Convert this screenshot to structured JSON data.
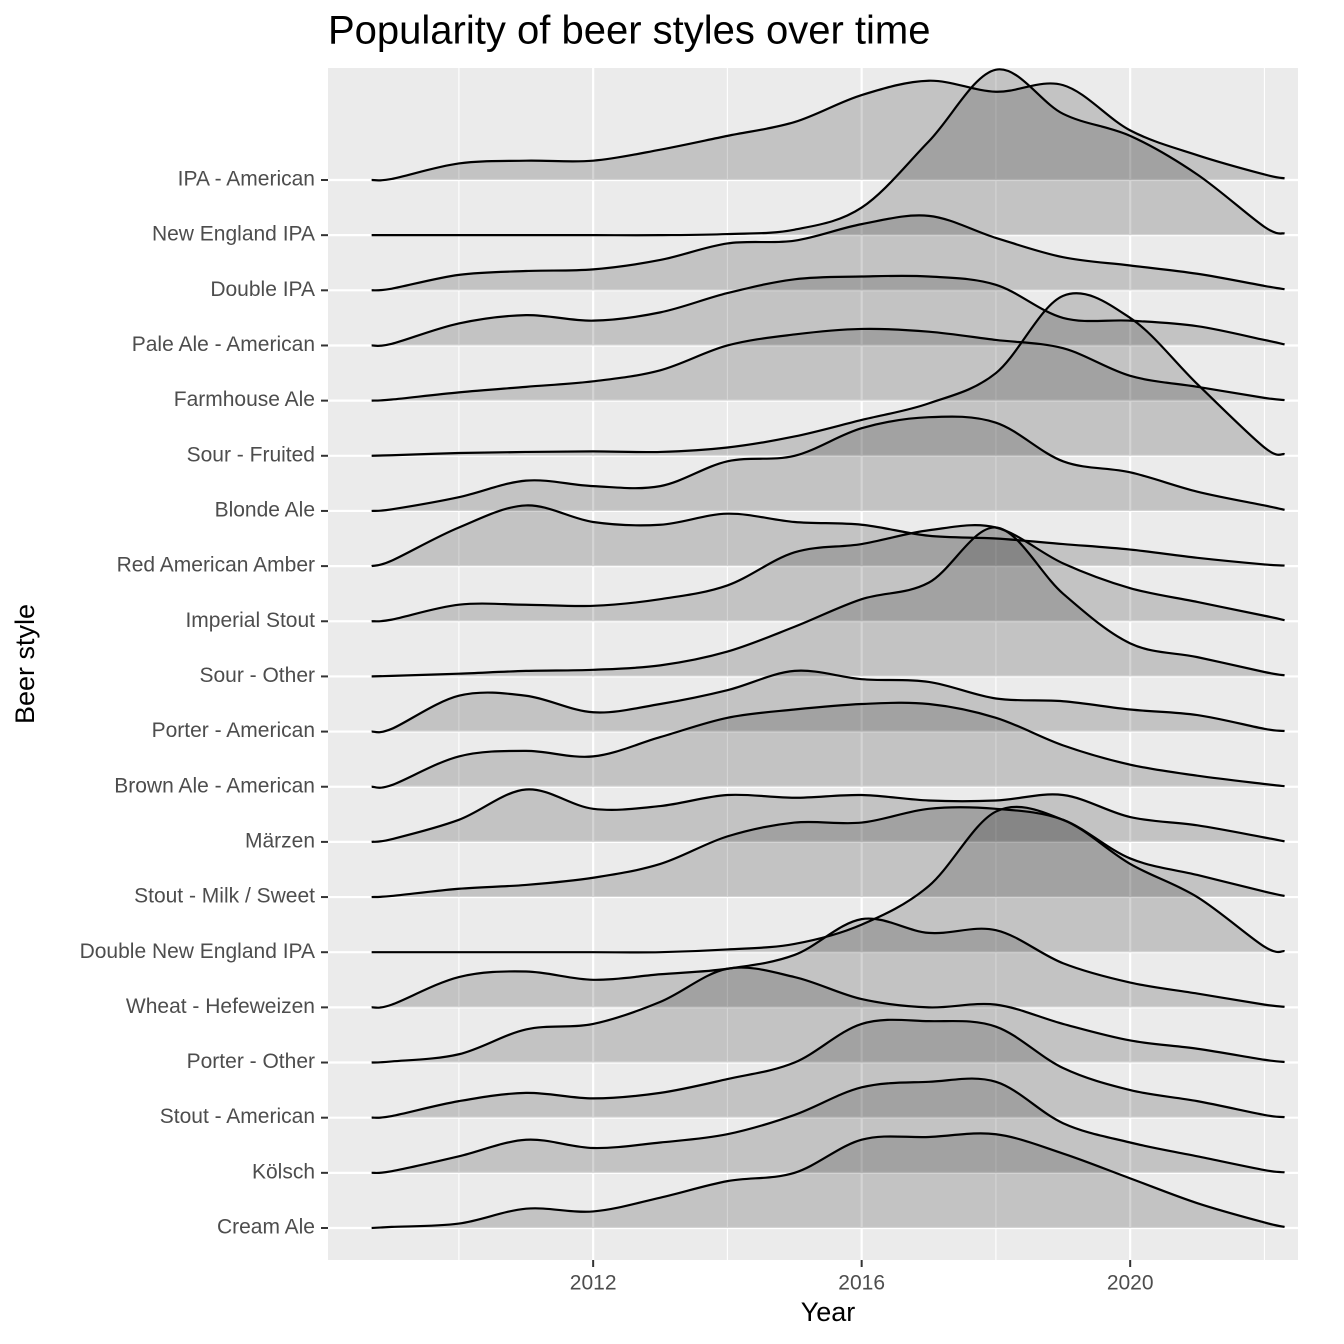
{
  "chart_data": {
    "type": "ridgeline",
    "title": "Popularity of beer styles over time",
    "x_label": "Year",
    "y_label": "Beer style",
    "x": [
      2008.7,
      2009,
      2010,
      2011,
      2012,
      2013,
      2014,
      2015,
      2016,
      2017,
      2018,
      2019,
      2020,
      2021,
      2022,
      2022.3
    ],
    "xlim": [
      2008.05,
      2022.5
    ],
    "xticks": [
      2012,
      2016,
      2020
    ],
    "xminor": [
      2010,
      2014,
      2018,
      2022
    ],
    "grid": true,
    "series": [
      {
        "name": "IPA - American",
        "values": [
          0,
          0.02,
          0.3,
          0.35,
          0.35,
          0.55,
          0.8,
          1.05,
          1.54,
          1.8,
          1.6,
          1.72,
          0.9,
          0.45,
          0.1,
          0.03
        ]
      },
      {
        "name": "New England IPA",
        "values": [
          0,
          0,
          0,
          0,
          0,
          0,
          0.02,
          0.1,
          0.5,
          1.7,
          3.0,
          2.2,
          1.8,
          1.1,
          0.15,
          0.03
        ]
      },
      {
        "name": "Double IPA",
        "values": [
          0,
          0.03,
          0.28,
          0.35,
          0.38,
          0.55,
          0.85,
          0.9,
          1.2,
          1.35,
          0.95,
          0.6,
          0.45,
          0.3,
          0.08,
          0.02
        ]
      },
      {
        "name": "Pale Ale - American",
        "values": [
          0,
          0.03,
          0.4,
          0.55,
          0.45,
          0.6,
          0.95,
          1.2,
          1.25,
          1.25,
          1.1,
          0.5,
          0.45,
          0.35,
          0.1,
          0.02
        ]
      },
      {
        "name": "Farmhouse Ale",
        "values": [
          0,
          0.02,
          0.15,
          0.25,
          0.35,
          0.55,
          1.0,
          1.2,
          1.3,
          1.25,
          1.1,
          0.95,
          0.45,
          0.25,
          0.05,
          0.01
        ]
      },
      {
        "name": "Sour - Fruited",
        "values": [
          0,
          0.01,
          0.05,
          0.07,
          0.08,
          0.07,
          0.15,
          0.35,
          0.65,
          0.95,
          1.5,
          2.9,
          2.5,
          1.3,
          0.15,
          0.03
        ]
      },
      {
        "name": "Blonde Ale",
        "values": [
          0,
          0.03,
          0.25,
          0.55,
          0.45,
          0.45,
          0.9,
          1.0,
          1.5,
          1.7,
          1.6,
          0.9,
          0.7,
          0.35,
          0.1,
          0.02
        ]
      },
      {
        "name": "Red American Amber",
        "values": [
          0,
          0.1,
          0.7,
          1.1,
          0.8,
          0.75,
          0.95,
          0.8,
          0.75,
          0.55,
          0.5,
          0.4,
          0.3,
          0.15,
          0.03,
          0.01
        ]
      },
      {
        "name": "Imperial Stout",
        "values": [
          0,
          0.03,
          0.3,
          0.3,
          0.28,
          0.4,
          0.65,
          1.25,
          1.4,
          1.65,
          1.7,
          1.05,
          0.6,
          0.35,
          0.1,
          0.02
        ]
      },
      {
        "name": "Sour - Other",
        "values": [
          0,
          0.01,
          0.05,
          0.1,
          0.12,
          0.2,
          0.45,
          0.9,
          1.4,
          1.7,
          2.7,
          1.5,
          0.6,
          0.35,
          0.08,
          0.02
        ]
      },
      {
        "name": "Porter - American",
        "values": [
          0,
          0.05,
          0.65,
          0.65,
          0.35,
          0.5,
          0.75,
          1.1,
          0.95,
          0.9,
          0.6,
          0.55,
          0.4,
          0.3,
          0.05,
          0.01
        ]
      },
      {
        "name": "Brown Ale - American",
        "values": [
          0,
          0.03,
          0.55,
          0.65,
          0.55,
          0.9,
          1.25,
          1.4,
          1.5,
          1.5,
          1.25,
          0.75,
          0.4,
          0.2,
          0.05,
          0.01
        ]
      },
      {
        "name": "Märzen",
        "values": [
          0,
          0.05,
          0.4,
          0.95,
          0.6,
          0.65,
          0.85,
          0.8,
          0.85,
          0.75,
          0.75,
          0.85,
          0.45,
          0.3,
          0.08,
          0.01
        ]
      },
      {
        "name": "Stout - Milk / Sweet",
        "values": [
          0,
          0.02,
          0.15,
          0.22,
          0.35,
          0.6,
          1.1,
          1.35,
          1.35,
          1.6,
          1.6,
          1.4,
          0.7,
          0.4,
          0.1,
          0.02
        ]
      },
      {
        "name": "Double New England IPA",
        "values": [
          0,
          0,
          0,
          0,
          0,
          0,
          0.05,
          0.15,
          0.5,
          1.2,
          2.55,
          2.4,
          1.6,
          1.0,
          0.1,
          0.02
        ]
      },
      {
        "name": "Wheat  - Hefeweizen",
        "values": [
          0,
          0.05,
          0.55,
          0.65,
          0.5,
          0.6,
          0.7,
          0.95,
          1.6,
          1.35,
          1.4,
          0.8,
          0.45,
          0.25,
          0.05,
          0.01
        ]
      },
      {
        "name": "Porter - Other",
        "values": [
          0,
          0.02,
          0.15,
          0.6,
          0.7,
          1.1,
          1.7,
          1.55,
          1.15,
          1.0,
          1.05,
          0.7,
          0.4,
          0.25,
          0.05,
          0.01
        ]
      },
      {
        "name": "Stout - American",
        "values": [
          0,
          0.03,
          0.3,
          0.45,
          0.35,
          0.45,
          0.7,
          1.0,
          1.7,
          1.75,
          1.65,
          0.9,
          0.5,
          0.3,
          0.05,
          0.01
        ]
      },
      {
        "name": "Kölsch",
        "values": [
          0,
          0.03,
          0.3,
          0.6,
          0.45,
          0.55,
          0.7,
          1.05,
          1.55,
          1.65,
          1.65,
          0.9,
          0.55,
          0.3,
          0.05,
          0.01
        ]
      },
      {
        "name": "Cream Ale",
        "values": [
          0,
          0.02,
          0.08,
          0.35,
          0.3,
          0.55,
          0.85,
          1.0,
          1.6,
          1.65,
          1.7,
          1.35,
          0.9,
          0.45,
          0.1,
          0.02
        ]
      }
    ]
  }
}
